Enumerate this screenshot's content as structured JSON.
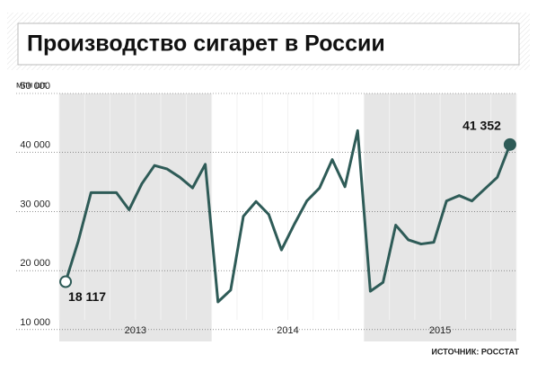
{
  "chart_data": {
    "type": "line",
    "title": "Производство сигарет в России",
    "unit_label": "млн шт.",
    "source": "ИСТОЧНИК: РОССТАТ",
    "categories": [
      null,
      null,
      null,
      null,
      null,
      null,
      null,
      null,
      null,
      null,
      null,
      null,
      null,
      null,
      null,
      null,
      null,
      null,
      null,
      null,
      null,
      null,
      null,
      null,
      null,
      null,
      null,
      null,
      null,
      null,
      null,
      null,
      null,
      null,
      null,
      null
    ],
    "x_groups": [
      "2013",
      "2014",
      "2015"
    ],
    "series": [
      {
        "name": null,
        "color": "#2e5b57",
        "values": [
          18117,
          25000,
          33200,
          33200,
          33200,
          30300,
          34700,
          37800,
          37200,
          35800,
          34000,
          38000,
          14700,
          16700,
          29200,
          31700,
          29500,
          23500,
          27800,
          31800,
          34000,
          38800,
          34200,
          43700,
          16500,
          18000,
          27700,
          25200,
          24500,
          24800,
          31800,
          32700,
          31800,
          33800,
          35800,
          41352
        ],
        "value_labels": [
          "18 117",
          null,
          null,
          null,
          null,
          null,
          null,
          null,
          null,
          null,
          null,
          null,
          null,
          null,
          null,
          null,
          null,
          null,
          null,
          null,
          null,
          null,
          null,
          null,
          null,
          null,
          null,
          null,
          null,
          null,
          null,
          null,
          null,
          null,
          null,
          "41 352"
        ]
      }
    ],
    "ylim": [
      8000,
      50000
    ],
    "yticks": [
      {
        "value": 10000,
        "label": "10 000"
      },
      {
        "value": 20000,
        "label": "20 000"
      },
      {
        "value": 30000,
        "label": "30 000"
      },
      {
        "value": 40000,
        "label": "40 000"
      },
      {
        "value": 50000,
        "label": "50 000"
      }
    ],
    "grid": true
  }
}
